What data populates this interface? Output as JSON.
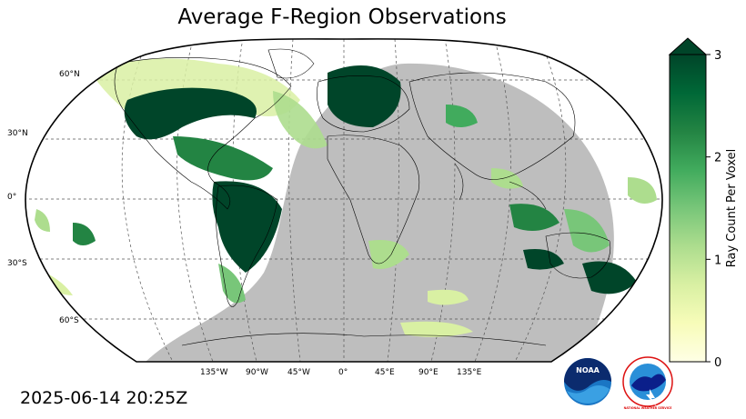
{
  "title": "Average F-Region Observations",
  "timestamp": "2025-06-14 20:25Z",
  "colorbar": {
    "label": "Ray Count Per Voxel",
    "ticks": [
      "0",
      "1",
      "2",
      "3"
    ],
    "min": 0,
    "max": 3,
    "extend": "max",
    "colormap": "YlGn",
    "colors": [
      "#ffffe5",
      "#f7fcb9",
      "#d9f0a3",
      "#addd8e",
      "#78c679",
      "#41ab5d",
      "#238443",
      "#006837",
      "#004529"
    ]
  },
  "map": {
    "projection": "Robinson",
    "lat_labels": [
      "60°N",
      "30°N",
      "0°",
      "30°S",
      "60°S"
    ],
    "lon_labels": [
      "135°W",
      "90°W",
      "45°W",
      "0°",
      "45°E",
      "90°E",
      "135°E"
    ],
    "night_shading_color": "#bebebe",
    "gridlines": true
  },
  "logos": {
    "noaa_text": "NOAA",
    "nws_text": "NATIONAL WEATHER SERVICE"
  }
}
